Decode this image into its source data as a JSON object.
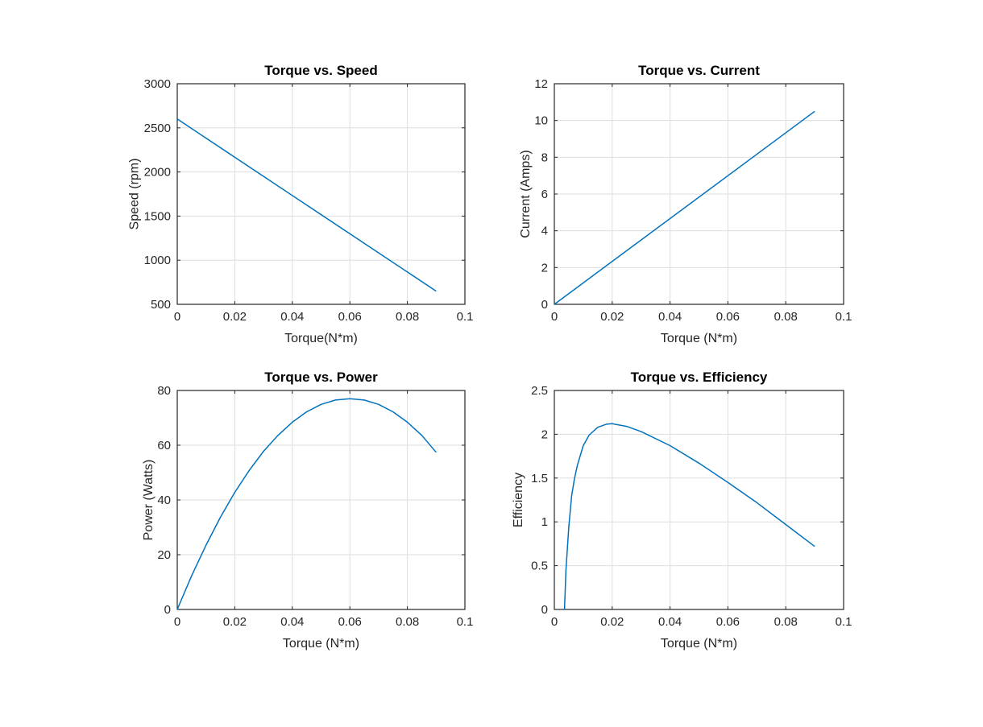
{
  "line_color": "#0072bd",
  "chart_data": [
    {
      "type": "line",
      "title": "Torque vs. Speed",
      "xlabel": "Torque(N*m)",
      "ylabel": "Speed (rpm)",
      "xlim": [
        0,
        0.1
      ],
      "ylim": [
        500,
        3000
      ],
      "xticks": [
        "0",
        "0.02",
        "0.04",
        "0.06",
        "0.08",
        "0.1"
      ],
      "yticks": [
        "500",
        "1000",
        "1500",
        "2000",
        "2500",
        "3000"
      ],
      "grid": true,
      "x": [
        0,
        0.09
      ],
      "y": [
        2600,
        650
      ]
    },
    {
      "type": "line",
      "title": "Torque vs. Current",
      "xlabel": "Torque (N*m)",
      "ylabel": "Current (Amps)",
      "xlim": [
        0,
        0.1
      ],
      "ylim": [
        0,
        12
      ],
      "xticks": [
        "0",
        "0.02",
        "0.04",
        "0.06",
        "0.08",
        "0.1"
      ],
      "yticks": [
        "0",
        "2",
        "4",
        "6",
        "8",
        "10",
        "12"
      ],
      "grid": true,
      "x": [
        0,
        0.09
      ],
      "y": [
        0,
        10.5
      ]
    },
    {
      "type": "line",
      "title": "Torque vs. Power",
      "xlabel": "Torque (N*m)",
      "ylabel": "Power (Watts)",
      "xlim": [
        0,
        0.1
      ],
      "ylim": [
        0,
        80
      ],
      "xticks": [
        "0",
        "0.02",
        "0.04",
        "0.06",
        "0.08",
        "0.1"
      ],
      "yticks": [
        "0",
        "20",
        "40",
        "60",
        "80"
      ],
      "grid": true,
      "x": [
        0,
        0.005,
        0.01,
        0.015,
        0.02,
        0.025,
        0.03,
        0.035,
        0.04,
        0.045,
        0.05,
        0.055,
        0.06,
        0.065,
        0.07,
        0.075,
        0.08,
        0.085,
        0.09
      ],
      "y": [
        0,
        12.3,
        23.5,
        33.7,
        42.8,
        50.8,
        57.8,
        63.6,
        68.4,
        72.2,
        74.9,
        76.5,
        77,
        76.5,
        74.9,
        72.2,
        68.4,
        63.6,
        57.4
      ]
    },
    {
      "type": "line",
      "title": "Torque vs. Efficiency",
      "xlabel": "Torque (N*m)",
      "ylabel": "Efficiency",
      "xlim": [
        0,
        0.1
      ],
      "ylim": [
        0,
        2.5
      ],
      "xticks": [
        "0",
        "0.02",
        "0.04",
        "0.06",
        "0.08",
        "0.1"
      ],
      "yticks": [
        "0",
        "0.5",
        "1",
        "1.5",
        "2",
        "2.5"
      ],
      "grid": true,
      "x": [
        0.0035,
        0.004,
        0.005,
        0.006,
        0.007,
        0.008,
        0.01,
        0.012,
        0.015,
        0.018,
        0.02,
        0.025,
        0.03,
        0.04,
        0.05,
        0.06,
        0.07,
        0.08,
        0.09
      ],
      "y": [
        0,
        0.45,
        0.95,
        1.3,
        1.5,
        1.65,
        1.87,
        1.99,
        2.08,
        2.115,
        2.12,
        2.09,
        2.03,
        1.87,
        1.67,
        1.45,
        1.22,
        0.97,
        0.72
      ]
    }
  ]
}
